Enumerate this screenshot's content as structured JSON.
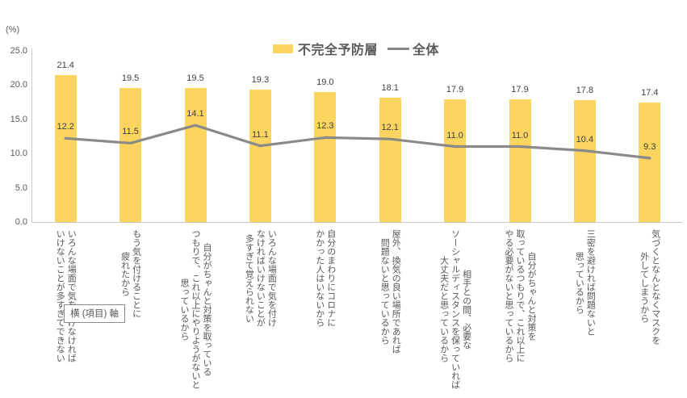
{
  "chart_data": {
    "type": "bar",
    "ylabel": "(%)",
    "ylim": [
      0,
      25
    ],
    "yticks": [
      "0.0",
      "5.0",
      "10.0",
      "15.0",
      "20.0",
      "25.0"
    ],
    "grid": false,
    "legend_position": "top-center",
    "categories": [
      [
        "いろんな場面で気を付けなければ",
        "いけないことが多すぎてできない"
      ],
      [
        "もう気を付けることに",
        "疲れたから"
      ],
      [
        "自分がちゃんと対策を取っている",
        "つもりで、これ以上にやりようがないと",
        "思っているから"
      ],
      [
        "いろんな場面で気を付け",
        "なければいけないことが",
        "多すぎて覚えられない"
      ],
      [
        "自分のまわりにコロナに",
        "かかった人はいないから"
      ],
      [
        "屋外、換気の良い場所であれば",
        "問題ないと思っているから"
      ],
      [
        "相手との間、必要な",
        "ソーシャルディスタンスを保っていれば",
        "大丈夫だと思っているから"
      ],
      [
        "自分がちゃんと対策を",
        "取っているつもりで、これ以上に",
        "やる必要がないと思っているから"
      ],
      [
        "三密を避ければ問題ないと",
        "思っているから"
      ],
      [
        "気づくとなんとなくマスクを",
        "外してしまうから"
      ]
    ],
    "series": [
      {
        "name": "不完全予防層",
        "kind": "bar",
        "color": "#FBD55F",
        "values": [
          21.4,
          19.5,
          19.5,
          19.3,
          19.0,
          18.1,
          17.9,
          17.9,
          17.8,
          17.4
        ]
      },
      {
        "name": "全体",
        "kind": "line",
        "color": "#8A8A8A",
        "values": [
          12.2,
          11.5,
          14.1,
          11.1,
          12.3,
          12.1,
          11.0,
          11.0,
          10.4,
          9.3
        ]
      }
    ]
  },
  "overlay": {
    "axis_tooltip": "横 (項目) 軸"
  },
  "colors": {
    "bar": "#FBD55F",
    "line": "#8A8A8A",
    "text": "#595959",
    "axis_line": "#C9C9C9"
  }
}
